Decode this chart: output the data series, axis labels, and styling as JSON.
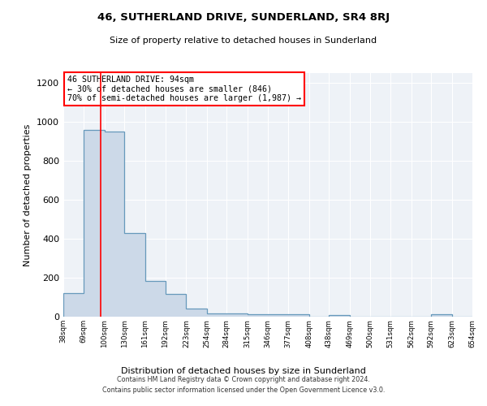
{
  "title": "46, SUTHERLAND DRIVE, SUNDERLAND, SR4 8RJ",
  "subtitle": "Size of property relative to detached houses in Sunderland",
  "xlabel": "Distribution of detached houses by size in Sunderland",
  "ylabel": "Number of detached properties",
  "footer_line1": "Contains HM Land Registry data © Crown copyright and database right 2024.",
  "footer_line2": "Contains public sector information licensed under the Open Government Licence v3.0.",
  "bin_edges": [
    38,
    69,
    100,
    130,
    161,
    192,
    223,
    254,
    284,
    315,
    346,
    377,
    408,
    438,
    469,
    500,
    531,
    562,
    592,
    623,
    654
  ],
  "bar_heights": [
    120,
    960,
    950,
    430,
    185,
    115,
    42,
    17,
    15,
    14,
    13,
    12,
    0,
    10,
    0,
    0,
    0,
    0,
    12,
    0
  ],
  "bar_color": "#ccd9e8",
  "bar_edge_color": "#6699bb",
  "red_line_x": 94,
  "annotation_text": "46 SUTHERLAND DRIVE: 94sqm\n← 30% of detached houses are smaller (846)\n70% of semi-detached houses are larger (1,987) →",
  "annotation_box_color": "white",
  "annotation_box_edge_color": "red",
  "ylim": [
    0,
    1250
  ],
  "xlim": [
    38,
    654
  ],
  "background_color": "#eef2f7",
  "grid_color": "white",
  "tick_labels": [
    "38sqm",
    "69sqm",
    "100sqm",
    "130sqm",
    "161sqm",
    "192sqm",
    "223sqm",
    "254sqm",
    "284sqm",
    "315sqm",
    "346sqm",
    "377sqm",
    "408sqm",
    "438sqm",
    "469sqm",
    "500sqm",
    "531sqm",
    "562sqm",
    "592sqm",
    "623sqm",
    "654sqm"
  ]
}
